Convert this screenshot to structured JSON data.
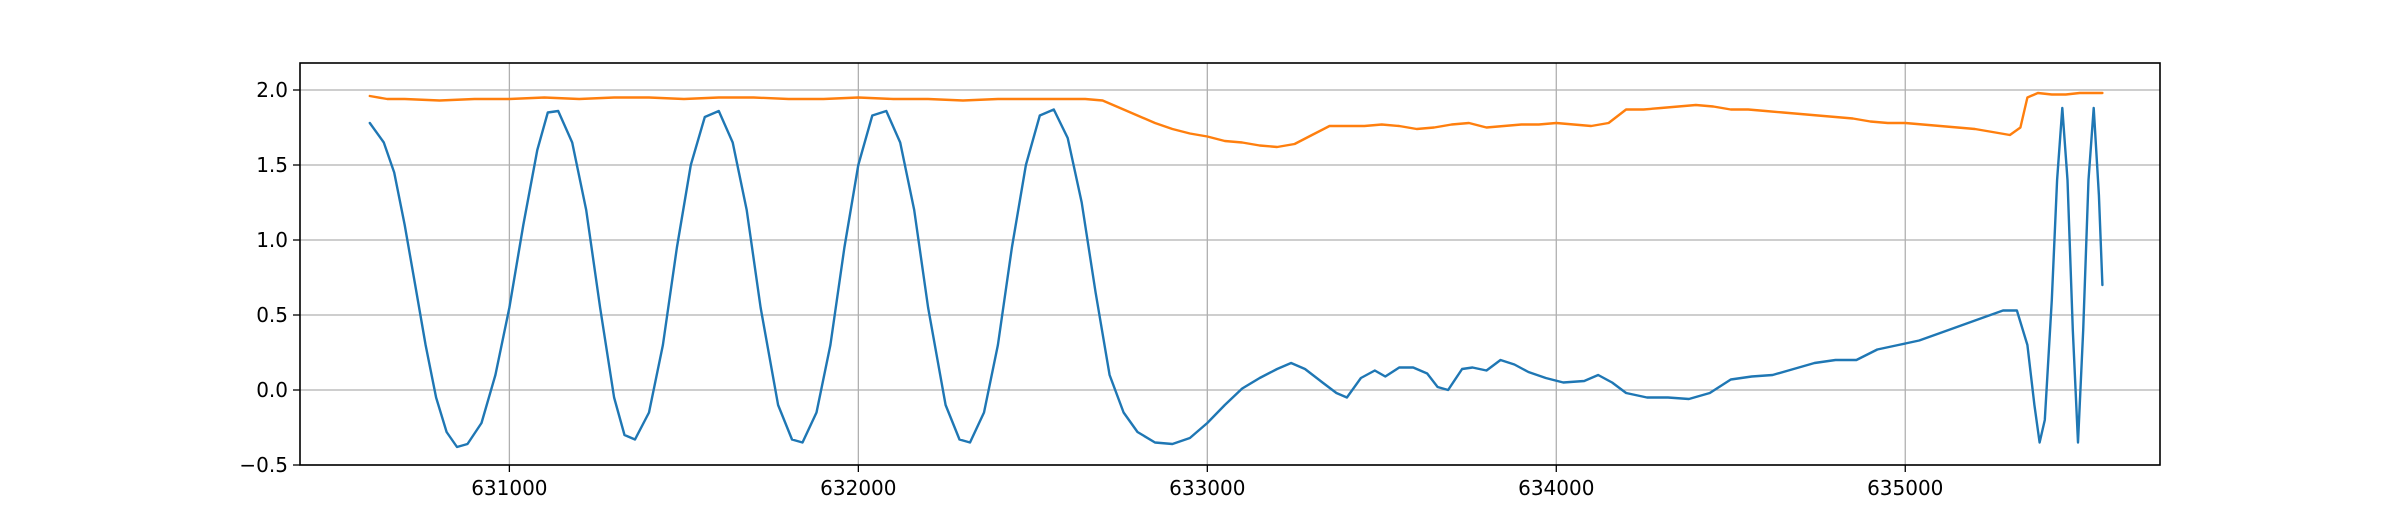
{
  "chart_data": {
    "type": "line",
    "title": "",
    "xlabel": "",
    "ylabel": "",
    "xlim": [
      630400,
      635730
    ],
    "ylim": [
      -0.5,
      2.18
    ],
    "grid": true,
    "x_ticks": [
      631000,
      632000,
      633000,
      634000,
      635000
    ],
    "y_ticks": [
      -0.5,
      0.0,
      0.5,
      1.0,
      1.5,
      2.0
    ],
    "x_tick_labels": [
      "631000",
      "632000",
      "633000",
      "634000",
      "635000"
    ],
    "y_tick_labels": [
      "−0.5",
      "0.0",
      "0.5",
      "1.0",
      "1.5",
      "2.0"
    ],
    "series": [
      {
        "color": "#1f77b4",
        "points": [
          [
            630600,
            1.78
          ],
          [
            630640,
            1.65
          ],
          [
            630670,
            1.45
          ],
          [
            630700,
            1.1
          ],
          [
            630730,
            0.7
          ],
          [
            630760,
            0.3
          ],
          [
            630790,
            -0.05
          ],
          [
            630820,
            -0.28
          ],
          [
            630850,
            -0.38
          ],
          [
            630880,
            -0.36
          ],
          [
            630920,
            -0.22
          ],
          [
            630960,
            0.1
          ],
          [
            631000,
            0.55
          ],
          [
            631040,
            1.1
          ],
          [
            631080,
            1.6
          ],
          [
            631110,
            1.85
          ],
          [
            631140,
            1.86
          ],
          [
            631180,
            1.65
          ],
          [
            631220,
            1.2
          ],
          [
            631260,
            0.55
          ],
          [
            631300,
            -0.05
          ],
          [
            631330,
            -0.3
          ],
          [
            631360,
            -0.33
          ],
          [
            631400,
            -0.15
          ],
          [
            631440,
            0.3
          ],
          [
            631480,
            0.95
          ],
          [
            631520,
            1.5
          ],
          [
            631560,
            1.82
          ],
          [
            631600,
            1.86
          ],
          [
            631640,
            1.65
          ],
          [
            631680,
            1.2
          ],
          [
            631720,
            0.55
          ],
          [
            631770,
            -0.1
          ],
          [
            631810,
            -0.33
          ],
          [
            631840,
            -0.35
          ],
          [
            631880,
            -0.15
          ],
          [
            631920,
            0.3
          ],
          [
            631960,
            0.95
          ],
          [
            632000,
            1.5
          ],
          [
            632040,
            1.83
          ],
          [
            632080,
            1.86
          ],
          [
            632120,
            1.65
          ],
          [
            632160,
            1.2
          ],
          [
            632200,
            0.55
          ],
          [
            632250,
            -0.1
          ],
          [
            632290,
            -0.33
          ],
          [
            632320,
            -0.35
          ],
          [
            632360,
            -0.15
          ],
          [
            632400,
            0.3
          ],
          [
            632440,
            0.95
          ],
          [
            632480,
            1.5
          ],
          [
            632520,
            1.83
          ],
          [
            632560,
            1.87
          ],
          [
            632600,
            1.68
          ],
          [
            632640,
            1.25
          ],
          [
            632680,
            0.65
          ],
          [
            632720,
            0.1
          ],
          [
            632760,
            -0.15
          ],
          [
            632800,
            -0.28
          ],
          [
            632850,
            -0.35
          ],
          [
            632900,
            -0.36
          ],
          [
            632950,
            -0.32
          ],
          [
            633000,
            -0.22
          ],
          [
            633050,
            -0.1
          ],
          [
            633100,
            0.01
          ],
          [
            633150,
            0.08
          ],
          [
            633200,
            0.14
          ],
          [
            633240,
            0.18
          ],
          [
            633280,
            0.14
          ],
          [
            633330,
            0.05
          ],
          [
            633370,
            -0.02
          ],
          [
            633400,
            -0.05
          ],
          [
            633440,
            0.08
          ],
          [
            633480,
            0.13
          ],
          [
            633510,
            0.09
          ],
          [
            633550,
            0.15
          ],
          [
            633590,
            0.15
          ],
          [
            633630,
            0.11
          ],
          [
            633660,
            0.02
          ],
          [
            633690,
            0.0
          ],
          [
            633730,
            0.14
          ],
          [
            633760,
            0.15
          ],
          [
            633800,
            0.13
          ],
          [
            633840,
            0.2
          ],
          [
            633880,
            0.17
          ],
          [
            633920,
            0.12
          ],
          [
            633970,
            0.08
          ],
          [
            634020,
            0.05
          ],
          [
            634080,
            0.06
          ],
          [
            634120,
            0.1
          ],
          [
            634160,
            0.05
          ],
          [
            634200,
            -0.02
          ],
          [
            634260,
            -0.05
          ],
          [
            634320,
            -0.05
          ],
          [
            634380,
            -0.06
          ],
          [
            634440,
            -0.02
          ],
          [
            634500,
            0.07
          ],
          [
            634560,
            0.09
          ],
          [
            634620,
            0.1
          ],
          [
            634680,
            0.14
          ],
          [
            634740,
            0.18
          ],
          [
            634800,
            0.2
          ],
          [
            634860,
            0.2
          ],
          [
            634920,
            0.27
          ],
          [
            634980,
            0.3
          ],
          [
            635040,
            0.33
          ],
          [
            635100,
            0.38
          ],
          [
            635160,
            0.43
          ],
          [
            635220,
            0.48
          ],
          [
            635280,
            0.53
          ],
          [
            635320,
            0.53
          ],
          [
            635350,
            0.3
          ],
          [
            635370,
            -0.1
          ],
          [
            635385,
            -0.35
          ],
          [
            635400,
            -0.2
          ],
          [
            635420,
            0.6
          ],
          [
            635435,
            1.4
          ],
          [
            635450,
            1.88
          ],
          [
            635465,
            1.4
          ],
          [
            635480,
            0.4
          ],
          [
            635495,
            -0.35
          ],
          [
            635510,
            0.4
          ],
          [
            635525,
            1.4
          ],
          [
            635540,
            1.88
          ],
          [
            635555,
            1.3
          ],
          [
            635565,
            0.7
          ]
        ]
      },
      {
        "color": "#ff7f0e",
        "points": [
          [
            630600,
            1.96
          ],
          [
            630650,
            1.94
          ],
          [
            630700,
            1.94
          ],
          [
            630800,
            1.93
          ],
          [
            630900,
            1.94
          ],
          [
            631000,
            1.94
          ],
          [
            631100,
            1.95
          ],
          [
            631200,
            1.94
          ],
          [
            631300,
            1.95
          ],
          [
            631400,
            1.95
          ],
          [
            631500,
            1.94
          ],
          [
            631600,
            1.95
          ],
          [
            631700,
            1.95
          ],
          [
            631800,
            1.94
          ],
          [
            631900,
            1.94
          ],
          [
            632000,
            1.95
          ],
          [
            632100,
            1.94
          ],
          [
            632200,
            1.94
          ],
          [
            632300,
            1.93
          ],
          [
            632400,
            1.94
          ],
          [
            632500,
            1.94
          ],
          [
            632600,
            1.94
          ],
          [
            632650,
            1.94
          ],
          [
            632700,
            1.93
          ],
          [
            632750,
            1.88
          ],
          [
            632800,
            1.83
          ],
          [
            632850,
            1.78
          ],
          [
            632900,
            1.74
          ],
          [
            632950,
            1.71
          ],
          [
            633000,
            1.69
          ],
          [
            633050,
            1.66
          ],
          [
            633100,
            1.65
          ],
          [
            633150,
            1.63
          ],
          [
            633200,
            1.62
          ],
          [
            633250,
            1.64
          ],
          [
            633300,
            1.7
          ],
          [
            633350,
            1.76
          ],
          [
            633400,
            1.76
          ],
          [
            633450,
            1.76
          ],
          [
            633500,
            1.77
          ],
          [
            633550,
            1.76
          ],
          [
            633600,
            1.74
          ],
          [
            633650,
            1.75
          ],
          [
            633700,
            1.77
          ],
          [
            633750,
            1.78
          ],
          [
            633800,
            1.75
          ],
          [
            633850,
            1.76
          ],
          [
            633900,
            1.77
          ],
          [
            633950,
            1.77
          ],
          [
            634000,
            1.78
          ],
          [
            634050,
            1.77
          ],
          [
            634100,
            1.76
          ],
          [
            634150,
            1.78
          ],
          [
            634200,
            1.87
          ],
          [
            634250,
            1.87
          ],
          [
            634300,
            1.88
          ],
          [
            634350,
            1.89
          ],
          [
            634400,
            1.9
          ],
          [
            634450,
            1.89
          ],
          [
            634500,
            1.87
          ],
          [
            634550,
            1.87
          ],
          [
            634600,
            1.86
          ],
          [
            634650,
            1.85
          ],
          [
            634700,
            1.84
          ],
          [
            634750,
            1.83
          ],
          [
            634800,
            1.82
          ],
          [
            634850,
            1.81
          ],
          [
            634900,
            1.79
          ],
          [
            634950,
            1.78
          ],
          [
            635000,
            1.78
          ],
          [
            635050,
            1.77
          ],
          [
            635100,
            1.76
          ],
          [
            635150,
            1.75
          ],
          [
            635200,
            1.74
          ],
          [
            635250,
            1.72
          ],
          [
            635300,
            1.7
          ],
          [
            635330,
            1.75
          ],
          [
            635350,
            1.95
          ],
          [
            635380,
            1.98
          ],
          [
            635420,
            1.97
          ],
          [
            635460,
            1.97
          ],
          [
            635500,
            1.98
          ],
          [
            635540,
            1.98
          ],
          [
            635565,
            1.98
          ]
        ]
      }
    ]
  }
}
